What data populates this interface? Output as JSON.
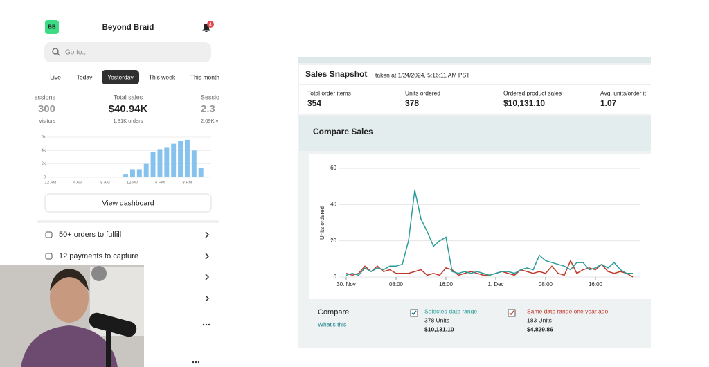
{
  "app": {
    "avatar": "BB",
    "store": "Beyond Braid",
    "notifications": "4",
    "search": "Go to...",
    "tabs": [
      "Live",
      "Today",
      "Yesterday",
      "This week",
      "This month"
    ],
    "stats": [
      {
        "label": "essions",
        "value": "300",
        "sub": "visitors"
      },
      {
        "label": "Total sales",
        "value": "$40.94K",
        "sub": "1.81K orders"
      },
      {
        "label": "Sessio",
        "value": "2.3",
        "sub": "2.09K v"
      }
    ],
    "button": "View dashboard",
    "tasks": [
      "50+ orders to fulfill",
      "12 payments to capture"
    ]
  },
  "snapshot": {
    "title": "Sales Snapshot",
    "taken": "taken at 1/24/2024, 5:16:11 AM PST",
    "metrics": [
      {
        "label": "Total order items",
        "value": "354"
      },
      {
        "label": "Units ordered",
        "value": "378"
      },
      {
        "label": "Ordered product sales",
        "value": "$10,131.10"
      },
      {
        "label": "Avg. units/order it",
        "value": "1.07"
      }
    ],
    "compare_title": "Compare Sales",
    "compare": "Compare",
    "whats_this": "What's this",
    "selected_units": "378 Units",
    "selected_sales": "$10,131.10",
    "last_year_units": "183 Units",
    "last_year_sales": "$4,829.86"
  },
  "chart_data": [
    {
      "type": "bar",
      "color": "#85c2ee",
      "grid": true,
      "categories": [
        "12 AM",
        null,
        null,
        null,
        "4 AM",
        null,
        null,
        null,
        "8 AM",
        null,
        null,
        null,
        "12 PM",
        null,
        null,
        null,
        "4 PM",
        null,
        null,
        null,
        "8 PM",
        null,
        null,
        null
      ],
      "values": [
        100,
        100,
        100,
        100,
        100,
        100,
        100,
        100,
        100,
        100,
        100,
        400,
        1200,
        1200,
        2000,
        3800,
        4200,
        4400,
        5000,
        5400,
        5600,
        4000,
        1400,
        100
      ],
      "ylim": [
        0,
        6000
      ],
      "yticks": [
        0,
        {
          "value": 2000,
          "label": "2k"
        },
        {
          "value": 4000,
          "label": "4k"
        },
        {
          "value": 6000,
          "label": "6k"
        }
      ]
    },
    {
      "type": "line",
      "y_label": "Units ordered",
      "grid": true,
      "categories": [
        "30. Nov",
        null,
        null,
        null,
        null,
        null,
        null,
        null,
        "08:00",
        null,
        null,
        null,
        null,
        null,
        null,
        null,
        "16:00",
        null,
        null,
        null,
        null,
        null,
        null,
        null,
        "1. Dec",
        null,
        null,
        null,
        null,
        null,
        null,
        null,
        "08:00",
        null,
        null,
        null,
        null,
        null,
        null,
        null,
        "16:00",
        null,
        null,
        null,
        null,
        null,
        null
      ],
      "ylim": [
        0,
        60
      ],
      "yticks": [
        0,
        20,
        40,
        60
      ],
      "series": [
        {
          "name": "Selected date range",
          "color": "#2a9d9a",
          "values": [
            1,
            2,
            1,
            5,
            3,
            5,
            4,
            6,
            6,
            7,
            20,
            48,
            32,
            25,
            17,
            20,
            22,
            3,
            2,
            3,
            2,
            3,
            2,
            1,
            2,
            3,
            3,
            2,
            4,
            5,
            4,
            12,
            9,
            8,
            7,
            6,
            4,
            8,
            8,
            4,
            5,
            7,
            5,
            8,
            4,
            2,
            2
          ]
        },
        {
          "name": "Same date range one year ago",
          "color": "#c0392b",
          "values": [
            2,
            1,
            2,
            6,
            3,
            6,
            3,
            4,
            2,
            2,
            2,
            3,
            4,
            1,
            2,
            1,
            5,
            4,
            1,
            2,
            3,
            2,
            1,
            1,
            2,
            3,
            2,
            1,
            4,
            3,
            2,
            3,
            2,
            6,
            2,
            1,
            9,
            2,
            4,
            5,
            4,
            7,
            3,
            2,
            3,
            2,
            0
          ]
        }
      ]
    }
  ]
}
